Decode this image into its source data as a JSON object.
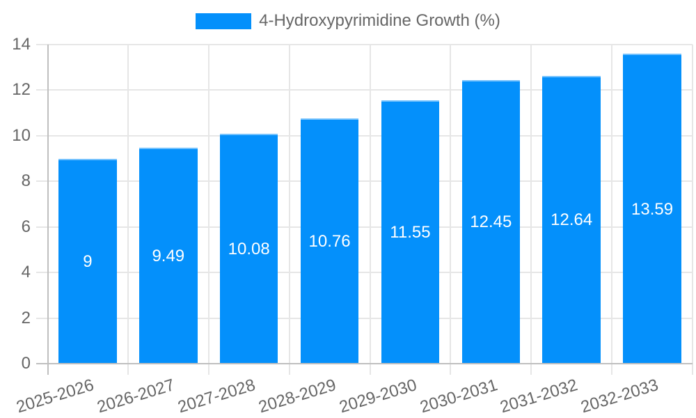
{
  "chart_data": {
    "type": "bar",
    "title": "",
    "categories": [
      "2025-2026",
      "2026-2027",
      "2027-2028",
      "2028-2029",
      "2029-2030",
      "2030-2031",
      "2031-2032",
      "2032-2033"
    ],
    "series": [
      {
        "name": "4-Hydroxypyrimidine Growth (%)",
        "values": [
          9,
          9.49,
          10.08,
          10.76,
          11.55,
          12.45,
          12.64,
          13.59
        ],
        "value_labels": [
          "9",
          "9.49",
          "10.08",
          "10.76",
          "11.55",
          "12.45",
          "12.64",
          "13.59"
        ],
        "color": "#0490fb"
      }
    ],
    "xlabel": "",
    "ylabel": "",
    "ylim": [
      0,
      14
    ],
    "yticks": [
      0,
      2,
      4,
      6,
      8,
      10,
      12,
      14
    ],
    "grid": true,
    "legend_position": "top-center",
    "value_labels_inside_bars": true
  },
  "colors": {
    "bar_fill": "#0490fb",
    "gridline": "#e6e6e6",
    "axis_zero_line": "#bfbfbf",
    "tick_text": "#666666",
    "value_label_text": "#ffffff",
    "background": "#ffffff"
  }
}
